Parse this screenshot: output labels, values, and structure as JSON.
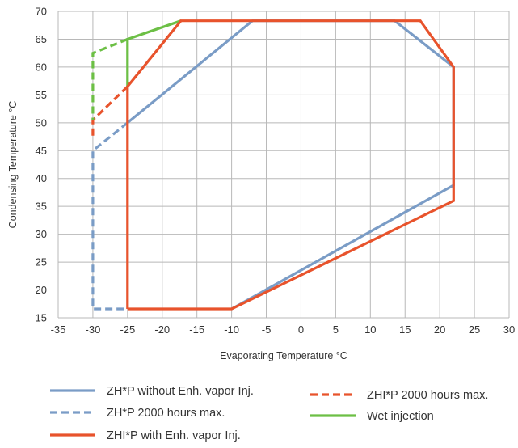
{
  "chart_data": {
    "type": "line",
    "title": "",
    "xlabel": "Evaporating Temperature °C",
    "ylabel": "Condensing Temperature °C",
    "xlim": [
      -35,
      30
    ],
    "ylim": [
      15,
      70
    ],
    "xticks": [
      -35,
      -30,
      -25,
      -20,
      -15,
      -10,
      -5,
      0,
      5,
      10,
      15,
      20,
      25,
      30
    ],
    "yticks": [
      15,
      20,
      25,
      30,
      35,
      40,
      45,
      50,
      55,
      60,
      65,
      70
    ],
    "grid": true,
    "legend_position": "bottom",
    "series": [
      {
        "name": "ZH*P without Enh. vapor Inj.",
        "color": "#7a9cc6",
        "dash": "solid",
        "points": [
          [
            -25,
            50
          ],
          [
            -7,
            68.3
          ],
          [
            13.5,
            68.3
          ],
          [
            22,
            60
          ],
          [
            22,
            38.8
          ],
          [
            -10,
            16.6
          ]
        ]
      },
      {
        "name": "ZH*P 2000 hours max.",
        "color": "#7a9cc6",
        "dash": "dashed",
        "points": [
          [
            -25,
            50
          ],
          [
            -30,
            45
          ],
          [
            -30,
            16.6
          ],
          [
            -25,
            16.6
          ]
        ]
      },
      {
        "name": "ZHI*P with Enh. vapor Inj.",
        "color": "#e8532c",
        "dash": "solid",
        "points": [
          [
            -25,
            16.6
          ],
          [
            -10,
            16.6
          ],
          [
            22,
            36
          ],
          [
            22,
            60
          ],
          [
            17.2,
            68.3
          ],
          [
            -17.3,
            68.3
          ],
          [
            -25,
            56.5
          ],
          [
            -25,
            16.6
          ]
        ]
      },
      {
        "name": "ZHI*P 2000 hours max.",
        "color": "#e8532c",
        "dash": "dashed",
        "points": [
          [
            -25,
            56.5
          ],
          [
            -30,
            50.5
          ],
          [
            -30,
            47
          ]
        ]
      },
      {
        "name": "Wet injection",
        "color": "#6cbf45",
        "dash": "solid",
        "points": [
          [
            -25,
            56.5
          ],
          [
            -25,
            65
          ],
          [
            -17.3,
            68.3
          ]
        ]
      },
      {
        "name": "",
        "color": "#6cbf45",
        "dash": "dashed",
        "points": [
          [
            -25,
            65
          ],
          [
            -30,
            62.5
          ],
          [
            -30,
            50.5
          ]
        ]
      }
    ]
  },
  "legend": {
    "items": [
      {
        "label": "ZH*P without Enh. vapor Inj.",
        "color": "#7a9cc6",
        "dash": "solid"
      },
      {
        "label": "ZH*P 2000 hours max.",
        "color": "#7a9cc6",
        "dash": "dashed"
      },
      {
        "label": "ZHI*P with Enh. vapor Inj.",
        "color": "#e8532c",
        "dash": "solid"
      },
      {
        "label": "ZHI*P 2000 hours max.",
        "color": "#e8532c",
        "dash": "dashed"
      },
      {
        "label": "Wet injection",
        "color": "#6cbf45",
        "dash": "solid"
      }
    ]
  }
}
